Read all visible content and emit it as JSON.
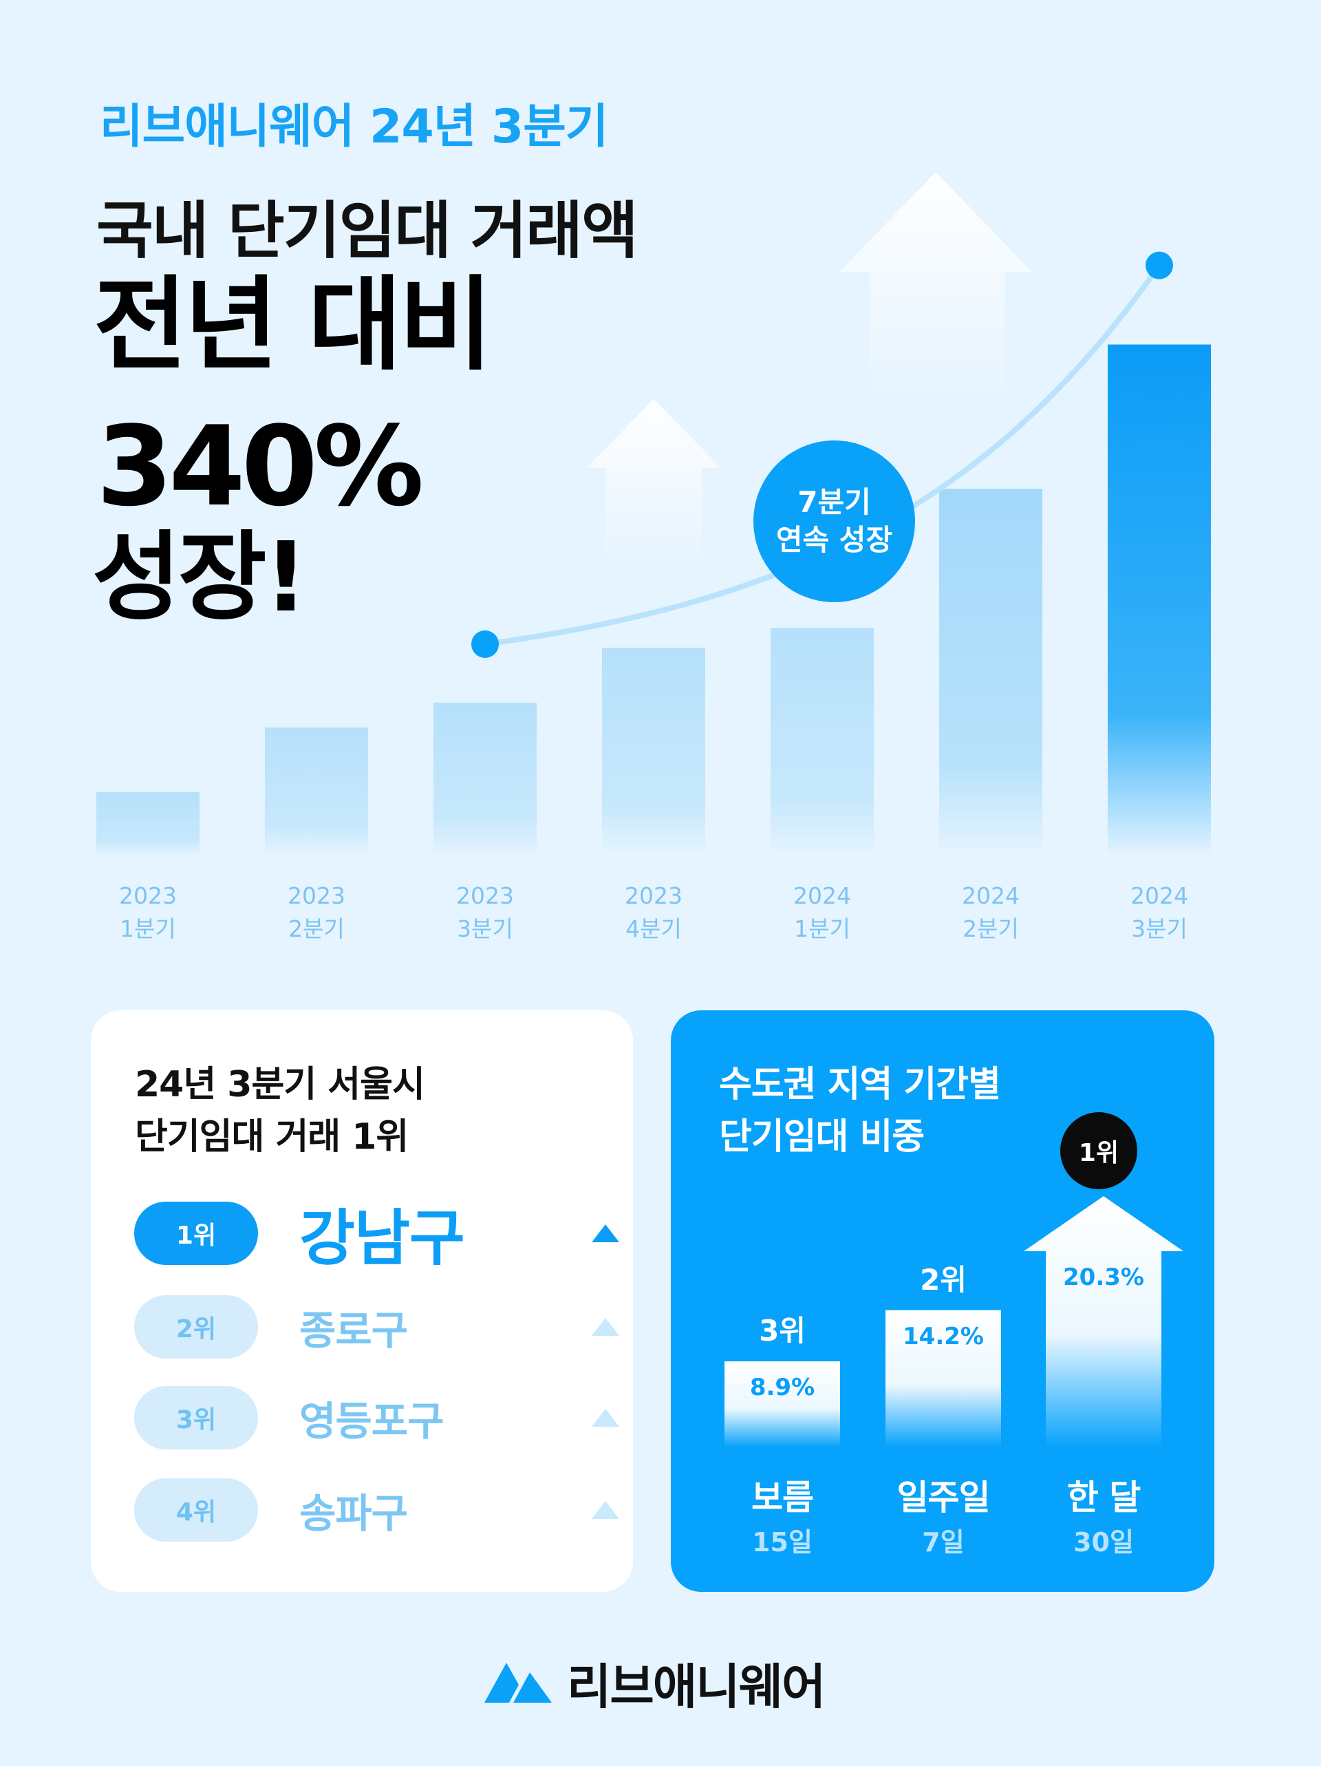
{
  "header": {
    "eyebrow": "리브애니웨어 24년 3분기",
    "line1": "국내 단기임대 거래액",
    "line2": "전년 대비",
    "line3": "340%",
    "line4": "성장!"
  },
  "badge": {
    "line1": "7분기",
    "line2": "연속 성장"
  },
  "chart_data": {
    "type": "bar",
    "categories": [
      {
        "year": "2023",
        "quarter": "1분기"
      },
      {
        "year": "2023",
        "quarter": "2분기"
      },
      {
        "year": "2023",
        "quarter": "3분기"
      },
      {
        "year": "2023",
        "quarter": "4분기"
      },
      {
        "year": "2024",
        "quarter": "1분기"
      },
      {
        "year": "2024",
        "quarter": "2분기"
      },
      {
        "year": "2024",
        "quarter": "3분기"
      }
    ],
    "values": [
      13,
      26,
      31,
      42,
      46,
      74,
      103
    ],
    "ylim": [
      0,
      110
    ],
    "trend_line": {
      "from_index": 2,
      "to_index": 6
    },
    "grid": false
  },
  "seoul_card": {
    "title1": "24년 3분기 서울시",
    "title2": "단기임대 거래 1위",
    "ranks": [
      {
        "rank": "1위",
        "name": "강남구"
      },
      {
        "rank": "2위",
        "name": "종로구"
      },
      {
        "rank": "3위",
        "name": "영등포구"
      },
      {
        "rank": "4위",
        "name": "송파구"
      }
    ]
  },
  "duration_card": {
    "title1": "수도권 지역 기간별",
    "title2": "단기임대 비중",
    "top_badge": "1위",
    "chart_data": {
      "type": "bar",
      "categories": [
        "보름",
        "일주일",
        "한 달"
      ],
      "days": [
        "15일",
        "7일",
        "30일"
      ],
      "ranks": [
        "3위",
        "2위",
        "1위"
      ],
      "labels": [
        "8.9%",
        "14.2%",
        "20.3%"
      ],
      "values": [
        8.9,
        14.2,
        20.3
      ]
    }
  },
  "footer": {
    "brand": "리브애니웨어"
  },
  "colors": {
    "accent": "#0aa1f8",
    "light": "#bfe4fb",
    "background": "#e6f4ff"
  }
}
